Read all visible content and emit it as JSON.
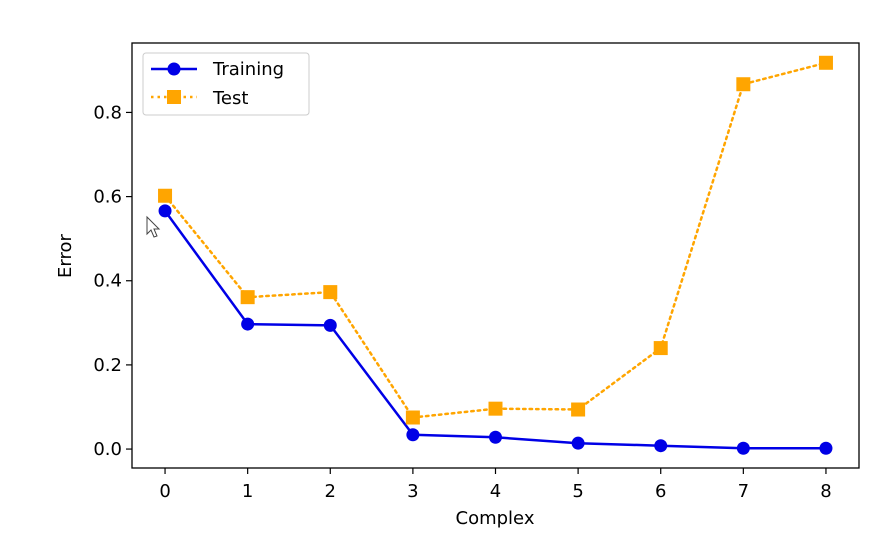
{
  "chart_data": {
    "type": "line",
    "title": "",
    "xlabel": "Complex",
    "ylabel": "Error",
    "x": [
      0,
      1,
      2,
      3,
      4,
      5,
      6,
      7,
      8
    ],
    "xlim": [
      -0.4,
      8.4
    ],
    "ylim": [
      -0.045,
      0.965
    ],
    "xticks": [
      0,
      1,
      2,
      3,
      4,
      5,
      6,
      7,
      8
    ],
    "yticks": [
      0.0,
      0.2,
      0.4,
      0.6,
      0.8
    ],
    "ytick_labels": [
      "0.0",
      "0.2",
      "0.4",
      "0.6",
      "0.8"
    ],
    "grid": false,
    "legend_position": "top-left",
    "series": [
      {
        "name": "Training",
        "color": "#0000e6",
        "line_style": "solid",
        "marker": "circle",
        "values": [
          0.566,
          0.297,
          0.294,
          0.034,
          0.028,
          0.014,
          0.008,
          0.002,
          0.002
        ]
      },
      {
        "name": "Test",
        "color": "#ffa500",
        "line_style": "dotted",
        "marker": "square",
        "values": [
          0.602,
          0.361,
          0.373,
          0.075,
          0.096,
          0.094,
          0.24,
          0.867,
          0.918
        ]
      }
    ],
    "cursor_icon": "mouse-pointer-icon"
  }
}
